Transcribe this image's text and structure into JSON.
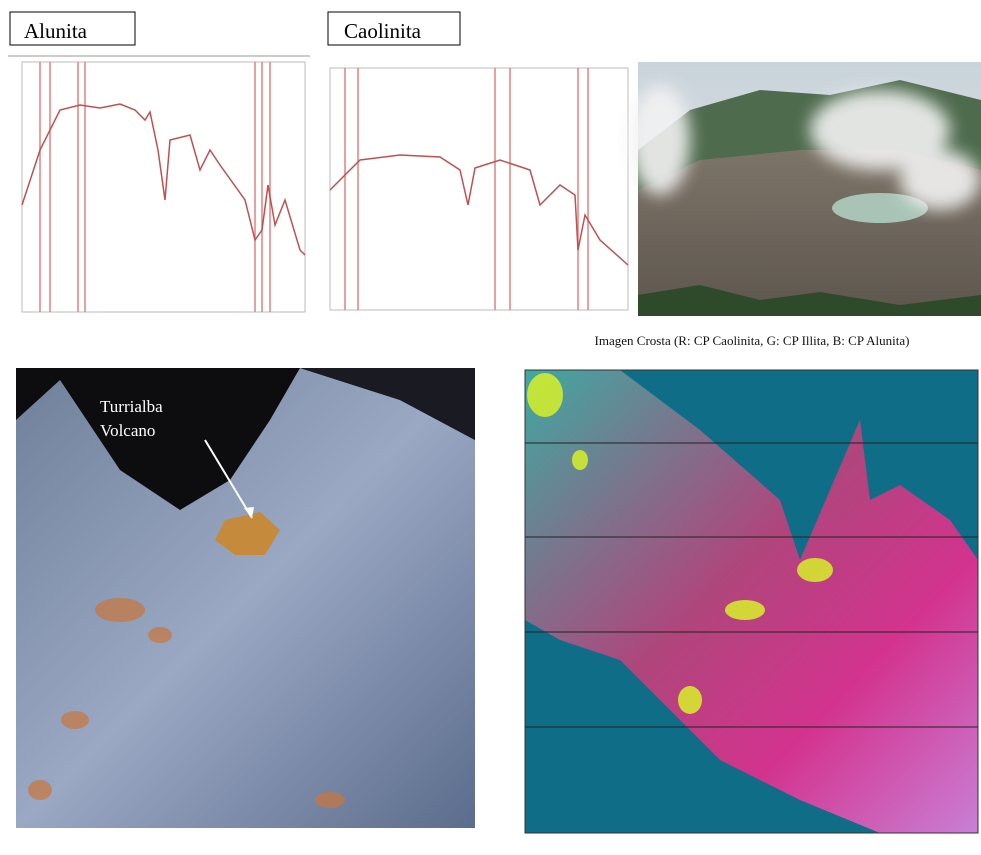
{
  "panels": {
    "alunita_label": "Alunita",
    "caolinita_label": "Caolinita"
  },
  "volcano_label": {
    "line1": "Turrialba",
    "line2": "Volcano"
  },
  "map_title": "Imagen Crosta (R: CP Caolinita, G: CP Illita, B: CP Alunita)"
}
